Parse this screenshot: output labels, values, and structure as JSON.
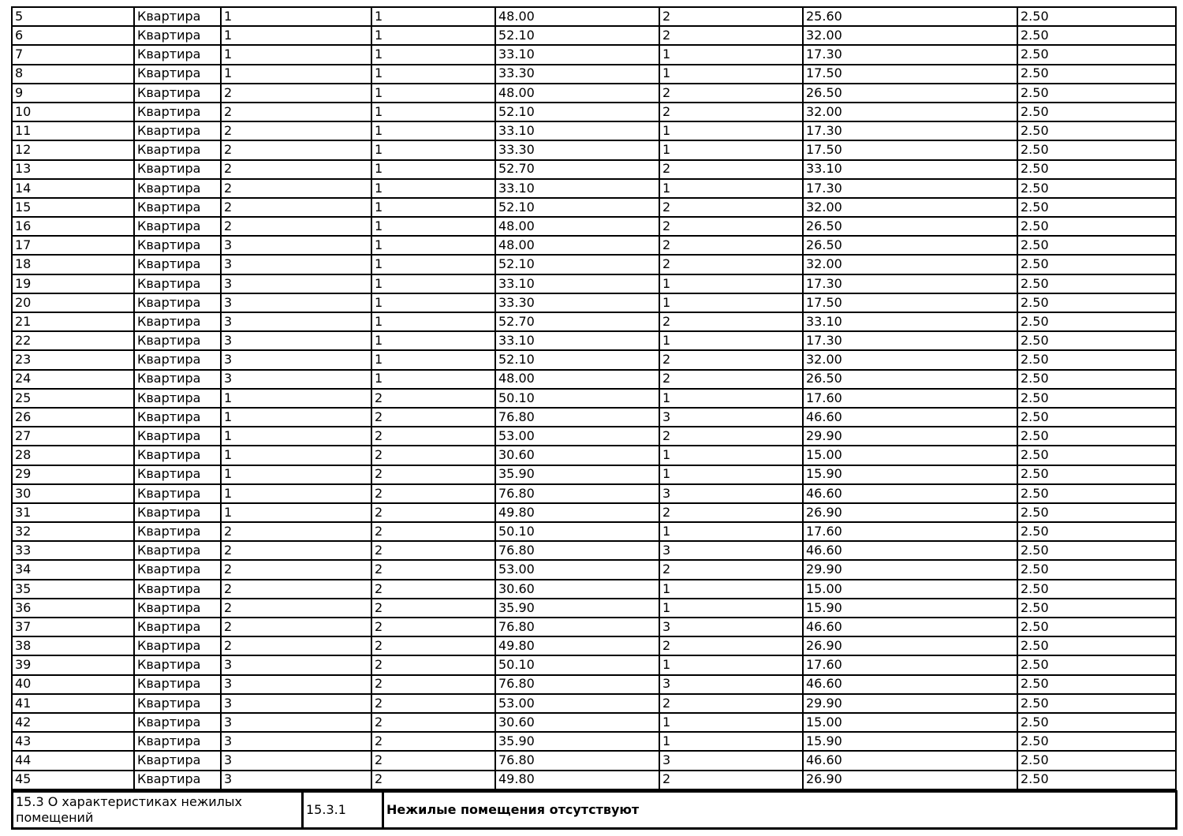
{
  "page": {
    "background_color": "#ffffff",
    "border_color": "#000000",
    "text_color": "#000000"
  },
  "apartments_table": {
    "column_keys": [
      "number",
      "type",
      "entrance",
      "floor",
      "total_area",
      "rooms",
      "living_area",
      "ceiling_height"
    ],
    "rows": [
      [
        "5",
        "Квартира",
        "1",
        "1",
        "48.00",
        "2",
        "25.60",
        "2.50"
      ],
      [
        "6",
        "Квартира",
        "1",
        "1",
        "52.10",
        "2",
        "32.00",
        "2.50"
      ],
      [
        "7",
        "Квартира",
        "1",
        "1",
        "33.10",
        "1",
        "17.30",
        "2.50"
      ],
      [
        "8",
        "Квартира",
        "1",
        "1",
        "33.30",
        "1",
        "17.50",
        "2.50"
      ],
      [
        "9",
        "Квартира",
        "2",
        "1",
        "48.00",
        "2",
        "26.50",
        "2.50"
      ],
      [
        "10",
        "Квартира",
        "2",
        "1",
        "52.10",
        "2",
        "32.00",
        "2.50"
      ],
      [
        "11",
        "Квартира",
        "2",
        "1",
        "33.10",
        "1",
        "17.30",
        "2.50"
      ],
      [
        "12",
        "Квартира",
        "2",
        "1",
        "33.30",
        "1",
        "17.50",
        "2.50"
      ],
      [
        "13",
        "Квартира",
        "2",
        "1",
        "52.70",
        "2",
        "33.10",
        "2.50"
      ],
      [
        "14",
        "Квартира",
        "2",
        "1",
        "33.10",
        "1",
        "17.30",
        "2.50"
      ],
      [
        "15",
        "Квартира",
        "2",
        "1",
        "52.10",
        "2",
        "32.00",
        "2.50"
      ],
      [
        "16",
        "Квартира",
        "2",
        "1",
        "48.00",
        "2",
        "26.50",
        "2.50"
      ],
      [
        "17",
        "Квартира",
        "3",
        "1",
        "48.00",
        "2",
        "26.50",
        "2.50"
      ],
      [
        "18",
        "Квартира",
        "3",
        "1",
        "52.10",
        "2",
        "32.00",
        "2.50"
      ],
      [
        "19",
        "Квартира",
        "3",
        "1",
        "33.10",
        "1",
        "17.30",
        "2.50"
      ],
      [
        "20",
        "Квартира",
        "3",
        "1",
        "33.30",
        "1",
        "17.50",
        "2.50"
      ],
      [
        "21",
        "Квартира",
        "3",
        "1",
        "52.70",
        "2",
        "33.10",
        "2.50"
      ],
      [
        "22",
        "Квартира",
        "3",
        "1",
        "33.10",
        "1",
        "17.30",
        "2.50"
      ],
      [
        "23",
        "Квартира",
        "3",
        "1",
        "52.10",
        "2",
        "32.00",
        "2.50"
      ],
      [
        "24",
        "Квартира",
        "3",
        "1",
        "48.00",
        "2",
        "26.50",
        "2.50"
      ],
      [
        "25",
        "Квартира",
        "1",
        "2",
        "50.10",
        "1",
        "17.60",
        "2.50"
      ],
      [
        "26",
        "Квартира",
        "1",
        "2",
        "76.80",
        "3",
        "46.60",
        "2.50"
      ],
      [
        "27",
        "Квартира",
        "1",
        "2",
        "53.00",
        "2",
        "29.90",
        "2.50"
      ],
      [
        "28",
        "Квартира",
        "1",
        "2",
        "30.60",
        "1",
        "15.00",
        "2.50"
      ],
      [
        "29",
        "Квартира",
        "1",
        "2",
        "35.90",
        "1",
        "15.90",
        "2.50"
      ],
      [
        "30",
        "Квартира",
        "1",
        "2",
        "76.80",
        "3",
        "46.60",
        "2.50"
      ],
      [
        "31",
        "Квартира",
        "1",
        "2",
        "49.80",
        "2",
        "26.90",
        "2.50"
      ],
      [
        "32",
        "Квартира",
        "2",
        "2",
        "50.10",
        "1",
        "17.60",
        "2.50"
      ],
      [
        "33",
        "Квартира",
        "2",
        "2",
        "76.80",
        "3",
        "46.60",
        "2.50"
      ],
      [
        "34",
        "Квартира",
        "2",
        "2",
        "53.00",
        "2",
        "29.90",
        "2.50"
      ],
      [
        "35",
        "Квартира",
        "2",
        "2",
        "30.60",
        "1",
        "15.00",
        "2.50"
      ],
      [
        "36",
        "Квартира",
        "2",
        "2",
        "35.90",
        "1",
        "15.90",
        "2.50"
      ],
      [
        "37",
        "Квартира",
        "2",
        "2",
        "76.80",
        "3",
        "46.60",
        "2.50"
      ],
      [
        "38",
        "Квартира",
        "2",
        "2",
        "49.80",
        "2",
        "26.90",
        "2.50"
      ],
      [
        "39",
        "Квартира",
        "3",
        "2",
        "50.10",
        "1",
        "17.60",
        "2.50"
      ],
      [
        "40",
        "Квартира",
        "3",
        "2",
        "76.80",
        "3",
        "46.60",
        "2.50"
      ],
      [
        "41",
        "Квартира",
        "3",
        "2",
        "53.00",
        "2",
        "29.90",
        "2.50"
      ],
      [
        "42",
        "Квартира",
        "3",
        "2",
        "30.60",
        "1",
        "15.00",
        "2.50"
      ],
      [
        "43",
        "Квартира",
        "3",
        "2",
        "35.90",
        "1",
        "15.90",
        "2.50"
      ],
      [
        "44",
        "Квартира",
        "3",
        "2",
        "76.80",
        "3",
        "46.60",
        "2.50"
      ],
      [
        "45",
        "Квартира",
        "3",
        "2",
        "49.80",
        "2",
        "26.90",
        "2.50"
      ]
    ]
  },
  "footer_section": {
    "label": "15.3 О характеристиках нежилых помещений",
    "code": "15.3.1",
    "value": "Нежилые помещения отсутствуют"
  }
}
